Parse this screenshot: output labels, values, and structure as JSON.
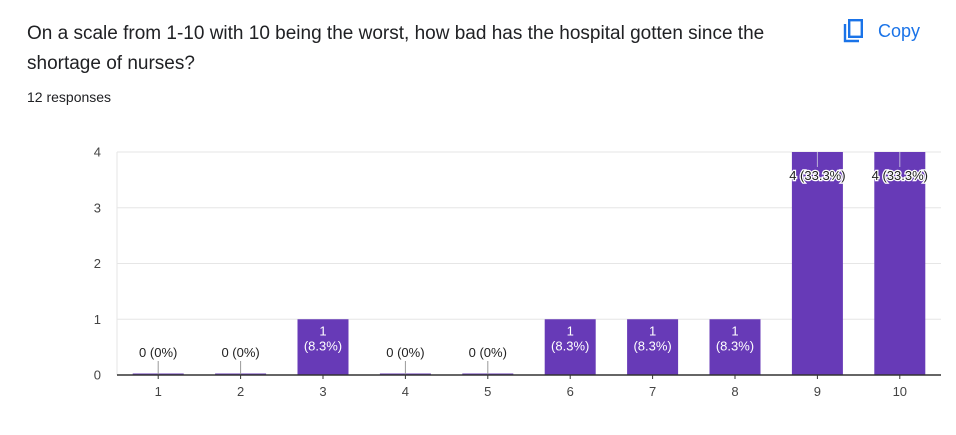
{
  "header": {
    "question": "On a scale from 1-10 with 10 being the worst, how bad has the hospital gotten since the shortage of nurses?",
    "responses": "12 responses",
    "copy_label": "Copy",
    "copy_icon": "copy-icon"
  },
  "colors": {
    "bar": "#673ab7",
    "accent": "#1a73e8",
    "grid": "#e6e6e6",
    "axis": "#333333"
  },
  "chart_data": {
    "type": "bar",
    "categories": [
      "1",
      "2",
      "3",
      "4",
      "5",
      "6",
      "7",
      "8",
      "9",
      "10"
    ],
    "values": [
      0,
      0,
      1,
      0,
      0,
      1,
      1,
      1,
      4,
      4
    ],
    "value_labels": [
      "0 (0%)",
      "0 (0%)",
      "1\n(8.3%)",
      "0 (0%)",
      "0 (0%)",
      "1\n(8.3%)",
      "1\n(8.3%)",
      "1\n(8.3%)",
      "4 (33.3%)",
      "4 (33.3%)"
    ],
    "yticks": [
      0,
      1,
      2,
      3,
      4
    ],
    "ylim": [
      0,
      4
    ],
    "grid": true,
    "legend": "none",
    "title": "",
    "xlabel": "",
    "ylabel": ""
  }
}
